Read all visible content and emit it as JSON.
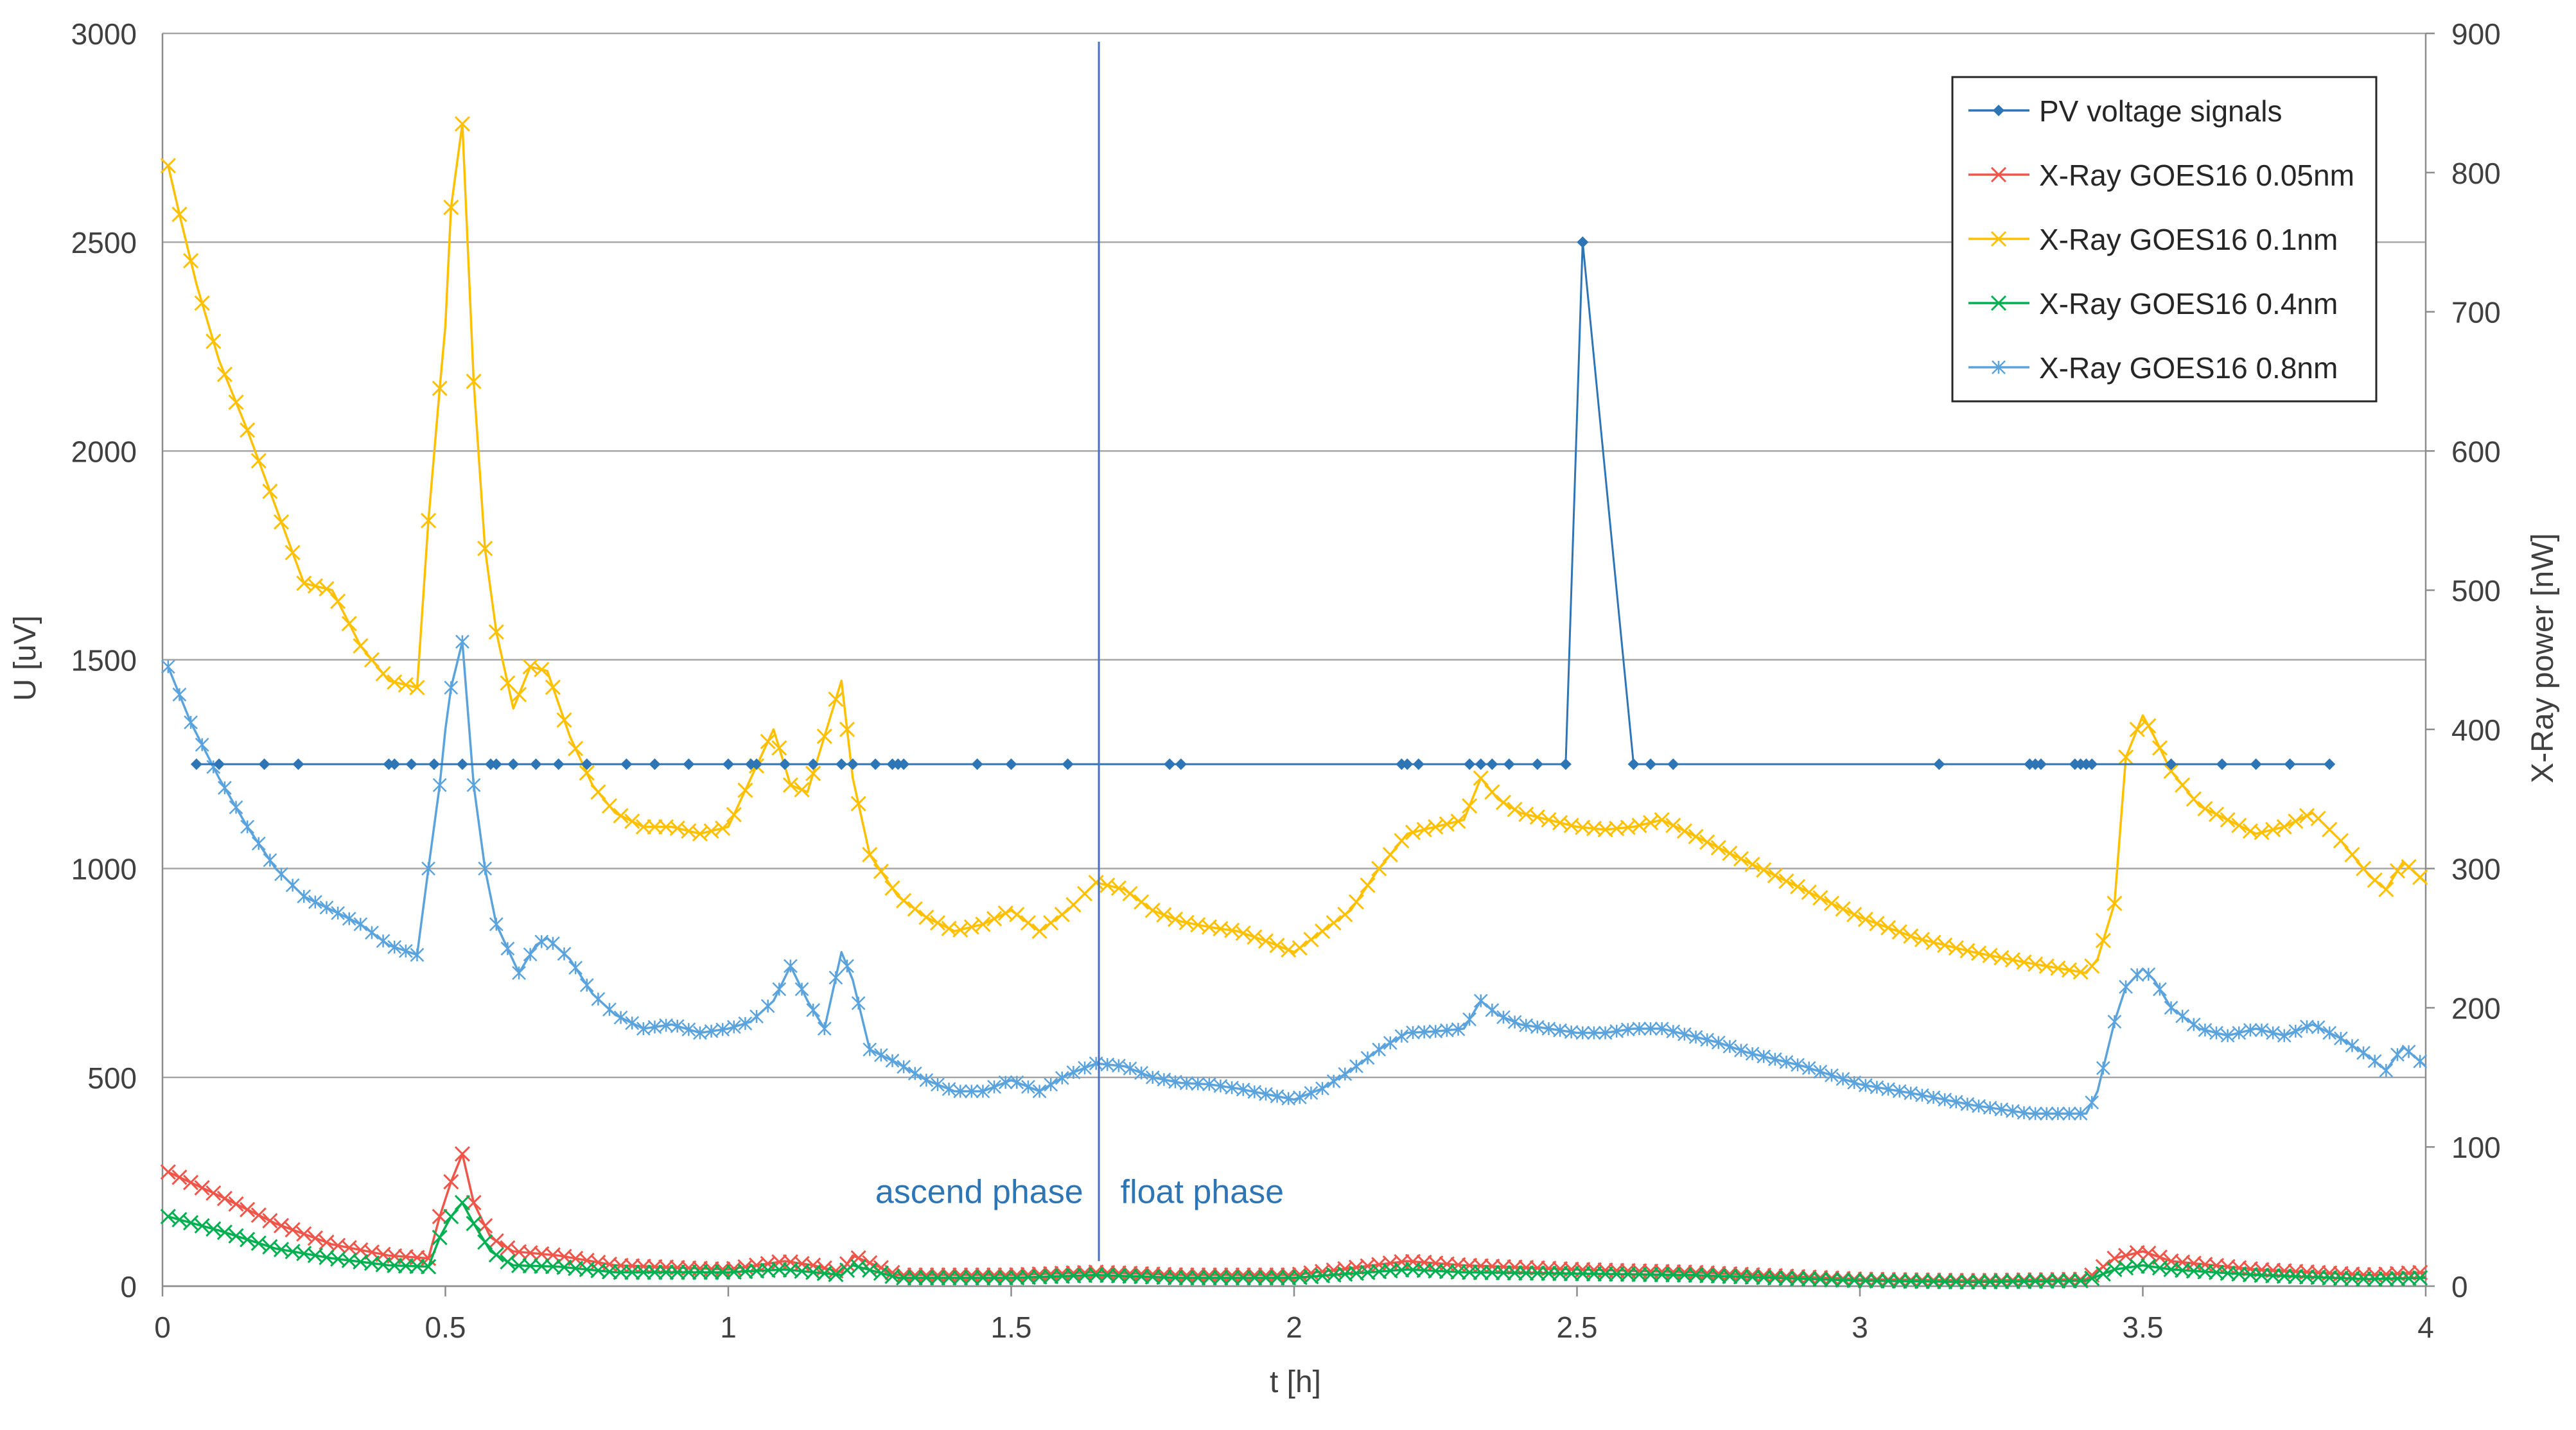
{
  "chart_data": {
    "type": "line",
    "xlabel": "t [h]",
    "ylabel": "U [uV]",
    "y2label": "X-Ray power [nW]",
    "xlim": [
      0,
      4
    ],
    "ylim": [
      0,
      3000
    ],
    "y2lim": [
      0,
      900
    ],
    "xticks": [
      0,
      0.5,
      1,
      1.5,
      2,
      2.5,
      3,
      3.5,
      4
    ],
    "xtick_labels": [
      "0",
      "0.5",
      "1",
      "1.5",
      "2",
      "2.5",
      "3",
      "3.5",
      "4"
    ],
    "yticks": [
      0,
      500,
      1000,
      1500,
      2000,
      2500,
      3000
    ],
    "ytick_labels": [
      "0",
      "500",
      "1000",
      "1500",
      "2000",
      "2500",
      "3000"
    ],
    "y2ticks": [
      0,
      100,
      200,
      300,
      400,
      500,
      600,
      700,
      800,
      900
    ],
    "y2tick_labels": [
      "0",
      "100",
      "200",
      "300",
      "400",
      "500",
      "600",
      "700",
      "800",
      "900"
    ],
    "grid": "horizontal",
    "legend_position": "top-right",
    "annotations": [
      {
        "text": "ascend phase",
        "x": 1.65,
        "y": 230,
        "align": "end"
      },
      {
        "text": "float phase",
        "x": 1.65,
        "y": 230,
        "align": "start"
      }
    ],
    "phase_marker": {
      "x": 1.655,
      "y_top": 2980,
      "y_bottom": 60,
      "color": "#4472C4"
    },
    "series": [
      {
        "name": "PV voltage signals",
        "axis": "left",
        "color": "#2E75B6",
        "marker": "diamond",
        "x": [
          0.06,
          0.1,
          0.18,
          0.24,
          0.4,
          0.41,
          0.44,
          0.48,
          0.53,
          0.58,
          0.59,
          0.62,
          0.66,
          0.7,
          0.75,
          0.82,
          0.87,
          0.93,
          1.0,
          1.04,
          1.05,
          1.1,
          1.15,
          1.2,
          1.22,
          1.26,
          1.29,
          1.3,
          1.31,
          1.44,
          1.5,
          1.6,
          1.78,
          1.8,
          2.19,
          2.2,
          2.22,
          2.31,
          2.33,
          2.35,
          2.38,
          2.43,
          2.48,
          2.51,
          2.6,
          2.63,
          2.67,
          3.14,
          3.3,
          3.31,
          3.32,
          3.38,
          3.39,
          3.4,
          3.41,
          3.55,
          3.64,
          3.7,
          3.76,
          3.83
        ],
        "values": [
          1250,
          1250,
          1250,
          1250,
          1250,
          1250,
          1250,
          1250,
          1250,
          1250,
          1250,
          1250,
          1250,
          1250,
          1250,
          1250,
          1250,
          1250,
          1250,
          1250,
          1250,
          1250,
          1250,
          1250,
          1250,
          1250,
          1250,
          1250,
          1250,
          1250,
          1250,
          1250,
          1250,
          1250,
          1250,
          1250,
          1250,
          1250,
          1250,
          1250,
          1250,
          1250,
          1250,
          2500,
          1250,
          1250,
          1250,
          1250,
          1250,
          1250,
          1250,
          1250,
          1250,
          1250,
          1250,
          1250,
          1250,
          1250,
          1250,
          1250
        ]
      },
      {
        "name": "X-Ray GOES16 0.05nm",
        "axis": "right",
        "color": "#F0554A",
        "marker": "x",
        "x": [
          0.01,
          0.1,
          0.2,
          0.3,
          0.4,
          0.47,
          0.49,
          0.51,
          0.53,
          0.55,
          0.58,
          0.62,
          0.7,
          0.8,
          1.0,
          1.1,
          1.15,
          1.2,
          1.22,
          1.3,
          1.5,
          1.65,
          1.8,
          2.0,
          2.2,
          2.3,
          2.5,
          2.7,
          3.0,
          3.2,
          3.4,
          3.45,
          3.5,
          3.55,
          3.7,
          3.9,
          4.0
        ],
        "values": [
          82,
          65,
          45,
          30,
          22,
          20,
          50,
          75,
          95,
          60,
          35,
          25,
          22,
          15,
          12,
          18,
          15,
          10,
          22,
          8,
          8,
          10,
          8,
          8,
          18,
          15,
          12,
          10,
          5,
          4,
          5,
          20,
          25,
          18,
          12,
          8,
          10
        ]
      },
      {
        "name": "X-Ray GOES16 0.1nm",
        "axis": "right",
        "color": "#FFC000",
        "marker": "x",
        "x": [
          0.01,
          0.03,
          0.06,
          0.1,
          0.15,
          0.2,
          0.25,
          0.3,
          0.35,
          0.4,
          0.45,
          0.47,
          0.49,
          0.5,
          0.51,
          0.53,
          0.55,
          0.57,
          0.59,
          0.62,
          0.65,
          0.68,
          0.72,
          0.76,
          0.8,
          0.85,
          0.9,
          0.95,
          1.0,
          1.04,
          1.08,
          1.11,
          1.14,
          1.17,
          1.2,
          1.22,
          1.25,
          1.3,
          1.35,
          1.4,
          1.45,
          1.5,
          1.55,
          1.6,
          1.65,
          1.7,
          1.75,
          1.8,
          1.85,
          1.9,
          1.95,
          2.0,
          2.05,
          2.1,
          2.15,
          2.2,
          2.25,
          2.3,
          2.33,
          2.36,
          2.4,
          2.45,
          2.5,
          2.55,
          2.6,
          2.65,
          2.7,
          2.75,
          2.8,
          2.9,
          3.0,
          3.1,
          3.2,
          3.3,
          3.4,
          3.42,
          3.45,
          3.47,
          3.5,
          3.52,
          3.55,
          3.6,
          3.65,
          3.7,
          3.75,
          3.8,
          3.85,
          3.9,
          3.93,
          3.96,
          4.0
        ],
        "values": [
          805,
          770,
          720,
          665,
          615,
          560,
          505,
          500,
          460,
          435,
          430,
          550,
          645,
          690,
          775,
          835,
          650,
          530,
          470,
          415,
          445,
          442,
          395,
          360,
          340,
          330,
          330,
          325,
          330,
          365,
          400,
          360,
          355,
          395,
          435,
          365,
          310,
          280,
          265,
          255,
          260,
          270,
          255,
          270,
          290,
          285,
          270,
          262,
          258,
          255,
          248,
          240,
          255,
          270,
          300,
          325,
          330,
          335,
          365,
          350,
          340,
          335,
          330,
          328,
          330,
          335,
          325,
          315,
          305,
          285,
          265,
          250,
          240,
          232,
          225,
          235,
          275,
          380,
          410,
          395,
          370,
          345,
          335,
          325,
          330,
          340,
          320,
          295,
          285,
          305,
          290
        ]
      },
      {
        "name": "X-Ray GOES16 0.4nm",
        "axis": "right",
        "color": "#00B050",
        "marker": "x",
        "x": [
          0.01,
          0.1,
          0.2,
          0.3,
          0.4,
          0.47,
          0.49,
          0.51,
          0.53,
          0.55,
          0.58,
          0.62,
          0.7,
          0.8,
          1.0,
          1.1,
          1.15,
          1.2,
          1.22,
          1.3,
          1.5,
          1.65,
          1.8,
          2.0,
          2.2,
          2.3,
          2.5,
          2.7,
          3.0,
          3.2,
          3.4,
          3.45,
          3.5,
          3.55,
          3.7,
          3.9,
          4.0
        ],
        "values": [
          50,
          40,
          27,
          20,
          15,
          14,
          35,
          50,
          60,
          45,
          25,
          15,
          14,
          10,
          10,
          12,
          10,
          8,
          15,
          6,
          6,
          8,
          6,
          6,
          12,
          10,
          9,
          8,
          4,
          3,
          4,
          12,
          15,
          12,
          8,
          5,
          6
        ]
      },
      {
        "name": "X-Ray GOES16 0.8nm",
        "axis": "right",
        "color": "#5BA3DC",
        "marker": "asterisk",
        "x": [
          0.01,
          0.05,
          0.1,
          0.15,
          0.2,
          0.25,
          0.3,
          0.35,
          0.4,
          0.45,
          0.47,
          0.49,
          0.5,
          0.51,
          0.53,
          0.55,
          0.57,
          0.59,
          0.63,
          0.66,
          0.68,
          0.72,
          0.76,
          0.8,
          0.85,
          0.9,
          0.95,
          1.0,
          1.04,
          1.08,
          1.11,
          1.14,
          1.17,
          1.2,
          1.22,
          1.25,
          1.3,
          1.35,
          1.4,
          1.45,
          1.5,
          1.55,
          1.6,
          1.65,
          1.7,
          1.75,
          1.8,
          1.85,
          1.9,
          1.95,
          2.0,
          2.05,
          2.1,
          2.15,
          2.2,
          2.25,
          2.3,
          2.33,
          2.36,
          2.4,
          2.45,
          2.5,
          2.55,
          2.6,
          2.65,
          2.7,
          2.75,
          2.8,
          2.9,
          3.0,
          3.1,
          3.2,
          3.3,
          3.4,
          3.42,
          3.45,
          3.47,
          3.5,
          3.52,
          3.55,
          3.6,
          3.65,
          3.7,
          3.75,
          3.8,
          3.85,
          3.9,
          3.93,
          3.96,
          4.0
        ],
        "values": [
          445,
          405,
          365,
          330,
          300,
          280,
          270,
          260,
          245,
          238,
          300,
          360,
          400,
          430,
          463,
          360,
          300,
          260,
          225,
          245,
          250,
          235,
          210,
          195,
          185,
          188,
          182,
          185,
          190,
          205,
          230,
          205,
          185,
          240,
          220,
          170,
          160,
          148,
          140,
          140,
          148,
          140,
          152,
          160,
          158,
          150,
          146,
          145,
          142,
          138,
          134,
          142,
          155,
          170,
          182,
          183,
          185,
          205,
          195,
          188,
          185,
          182,
          182,
          185,
          185,
          180,
          175,
          168,
          158,
          145,
          138,
          130,
          124,
          124,
          140,
          190,
          215,
          228,
          220,
          200,
          185,
          180,
          185,
          180,
          188,
          178,
          165,
          155,
          172,
          158
        ]
      }
    ]
  }
}
